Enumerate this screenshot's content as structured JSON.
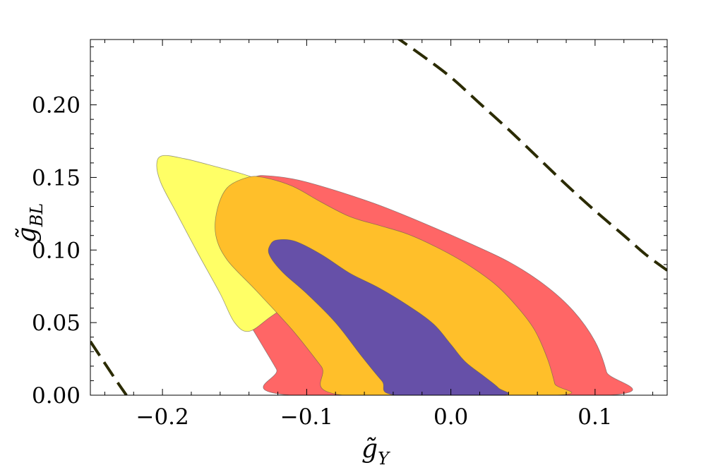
{
  "chart_data": {
    "type": "contour",
    "title": "",
    "xlabel": "g̃",
    "xlabel_subscript": "Y",
    "ylabel": "g̃",
    "ylabel_subscript": "BL",
    "xlim": [
      -0.25,
      0.15
    ],
    "ylim": [
      0.0,
      0.245
    ],
    "xticks": [
      -0.2,
      -0.1,
      0.0,
      0.1
    ],
    "xtick_labels": [
      "−0.2",
      "−0.1",
      "0.0",
      "0.1"
    ],
    "yticks": [
      0.0,
      0.05,
      0.1,
      0.15,
      0.2
    ],
    "ytick_labels": [
      "0.00",
      "0.05",
      "0.10",
      "0.15",
      "0.20"
    ],
    "grid": false,
    "legend": "none",
    "regions": [
      {
        "fill": "#ff6666",
        "points": [
          [
            -0.137,
            0.15
          ],
          [
            -0.125,
            0.151
          ],
          [
            -0.105,
            0.148
          ],
          [
            -0.08,
            0.141
          ],
          [
            -0.05,
            0.131
          ],
          [
            -0.02,
            0.119
          ],
          [
            0.01,
            0.106
          ],
          [
            0.04,
            0.092
          ],
          [
            0.065,
            0.076
          ],
          [
            0.085,
            0.058
          ],
          [
            0.1,
            0.037
          ],
          [
            0.108,
            0.016
          ],
          [
            0.11,
            0.0
          ],
          [
            -0.111,
            0.0
          ],
          [
            -0.121,
            0.018
          ],
          [
            -0.133,
            0.038
          ],
          [
            -0.146,
            0.06
          ],
          [
            -0.157,
            0.082
          ],
          [
            -0.163,
            0.103
          ],
          [
            -0.161,
            0.122
          ],
          [
            -0.154,
            0.139
          ]
        ]
      },
      {
        "fill": "#ffff66",
        "points": [
          [
            -0.2,
            0.165
          ],
          [
            -0.185,
            0.163
          ],
          [
            -0.165,
            0.158
          ],
          [
            -0.14,
            0.151
          ],
          [
            -0.115,
            0.141
          ],
          [
            -0.09,
            0.128
          ],
          [
            -0.07,
            0.116
          ],
          [
            -0.06,
            0.108
          ],
          [
            -0.07,
            0.095
          ],
          [
            -0.085,
            0.082
          ],
          [
            -0.105,
            0.068
          ],
          [
            -0.125,
            0.054
          ],
          [
            -0.14,
            0.044
          ],
          [
            -0.15,
            0.05
          ],
          [
            -0.16,
            0.07
          ],
          [
            -0.175,
            0.097
          ],
          [
            -0.19,
            0.125
          ],
          [
            -0.201,
            0.146
          ],
          [
            -0.204,
            0.159
          ]
        ]
      },
      {
        "fill": "#ffbf2a",
        "points": [
          [
            -0.141,
            0.15
          ],
          [
            -0.13,
            0.15
          ],
          [
            -0.11,
            0.144
          ],
          [
            -0.09,
            0.133
          ],
          [
            -0.07,
            0.123
          ],
          [
            -0.05,
            0.117
          ],
          [
            -0.03,
            0.111
          ],
          [
            -0.01,
            0.102
          ],
          [
            0.01,
            0.091
          ],
          [
            0.03,
            0.077
          ],
          [
            0.045,
            0.062
          ],
          [
            0.058,
            0.045
          ],
          [
            0.067,
            0.025
          ],
          [
            0.072,
            0.008
          ],
          [
            0.073,
            0.0
          ],
          [
            -0.075,
            0.0
          ],
          [
            -0.09,
            0.02
          ],
          [
            -0.11,
            0.045
          ],
          [
            -0.135,
            0.072
          ],
          [
            -0.155,
            0.093
          ],
          [
            -0.163,
            0.11
          ],
          [
            -0.162,
            0.128
          ],
          [
            -0.155,
            0.143
          ]
        ]
      },
      {
        "fill": "#6650a8",
        "points": [
          [
            -0.12,
            0.107
          ],
          [
            -0.108,
            0.106
          ],
          [
            -0.09,
            0.097
          ],
          [
            -0.07,
            0.084
          ],
          [
            -0.05,
            0.074
          ],
          [
            -0.03,
            0.062
          ],
          [
            -0.012,
            0.049
          ],
          [
            0.0,
            0.035
          ],
          [
            0.01,
            0.023
          ],
          [
            0.023,
            0.013
          ],
          [
            0.033,
            0.005
          ],
          [
            0.035,
            0.0
          ],
          [
            -0.038,
            0.0
          ],
          [
            -0.048,
            0.01
          ],
          [
            -0.062,
            0.027
          ],
          [
            -0.08,
            0.05
          ],
          [
            -0.1,
            0.07
          ],
          [
            -0.117,
            0.085
          ],
          [
            -0.126,
            0.097
          ],
          [
            -0.125,
            0.104
          ]
        ]
      }
    ],
    "dashed_curves": [
      {
        "color": "#2b2b00",
        "points": [
          [
            -0.04,
            0.248
          ],
          [
            -0.02,
            0.234
          ],
          [
            0.0,
            0.219
          ],
          [
            0.02,
            0.201
          ],
          [
            0.04,
            0.183
          ],
          [
            0.06,
            0.164
          ],
          [
            0.08,
            0.145
          ],
          [
            0.1,
            0.127
          ],
          [
            0.12,
            0.11
          ],
          [
            0.135,
            0.097
          ],
          [
            0.15,
            0.086
          ]
        ]
      },
      {
        "color": "#2b2b00",
        "points": [
          [
            -0.25,
            0.037
          ],
          [
            -0.24,
            0.022
          ],
          [
            -0.232,
            0.01
          ],
          [
            -0.225,
            0.0
          ]
        ]
      }
    ]
  }
}
